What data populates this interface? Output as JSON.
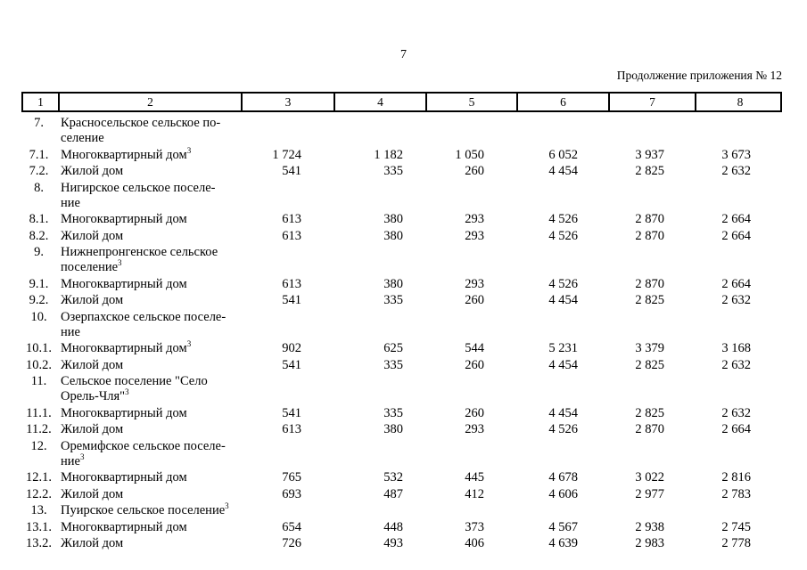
{
  "page_number": "7",
  "continuation_note": "Продолжение приложения № 12",
  "table": {
    "header_cols": [
      "1",
      "2",
      "3",
      "4",
      "5",
      "6",
      "7",
      "8"
    ],
    "rows": [
      {
        "num": "7.",
        "lines": [
          "Красносельское сельское по-",
          "селение"
        ],
        "sup": "",
        "values": []
      },
      {
        "num": "7.1.",
        "lines": [
          "Многоквартирный дом"
        ],
        "sup": "3",
        "values": [
          "1 724",
          "1 182",
          "1 050",
          "6 052",
          "3 937",
          "3 673"
        ]
      },
      {
        "num": "7.2.",
        "lines": [
          "Жилой дом"
        ],
        "sup": "",
        "values": [
          "541",
          "335",
          "260",
          "4 454",
          "2 825",
          "2 632"
        ]
      },
      {
        "num": "8.",
        "lines": [
          "Нигирское сельское поселе-",
          "ние"
        ],
        "sup": "",
        "values": []
      },
      {
        "num": "8.1.",
        "lines": [
          "Многоквартирный дом"
        ],
        "sup": "",
        "values": [
          "613",
          "380",
          "293",
          "4 526",
          "2 870",
          "2 664"
        ]
      },
      {
        "num": "8.2.",
        "lines": [
          "Жилой дом"
        ],
        "sup": "",
        "values": [
          "613",
          "380",
          "293",
          "4 526",
          "2 870",
          "2 664"
        ]
      },
      {
        "num": "9.",
        "lines": [
          "Нижнепронгенское сельское",
          "поселение"
        ],
        "sup": "3",
        "values": []
      },
      {
        "num": "9.1.",
        "lines": [
          "Многоквартирный дом"
        ],
        "sup": "",
        "values": [
          "613",
          "380",
          "293",
          "4 526",
          "2 870",
          "2 664"
        ]
      },
      {
        "num": "9.2.",
        "lines": [
          "Жилой дом"
        ],
        "sup": "",
        "values": [
          "541",
          "335",
          "260",
          "4 454",
          "2 825",
          "2 632"
        ]
      },
      {
        "num": "10.",
        "lines": [
          "Озерпахское сельское поселе-",
          "ние"
        ],
        "sup": "",
        "values": []
      },
      {
        "num": "10.1.",
        "lines": [
          "Многоквартирный дом"
        ],
        "sup": "3",
        "values": [
          "902",
          "625",
          "544",
          "5 231",
          "3 379",
          "3 168"
        ]
      },
      {
        "num": "10.2.",
        "lines": [
          "Жилой дом"
        ],
        "sup": "",
        "values": [
          "541",
          "335",
          "260",
          "4 454",
          "2 825",
          "2 632"
        ]
      },
      {
        "num": "11.",
        "lines": [
          "Сельское поселение \"Село",
          "Орель-Чля\""
        ],
        "sup": "3",
        "values": []
      },
      {
        "num": "11.1.",
        "lines": [
          "Многоквартирный дом"
        ],
        "sup": "",
        "values": [
          "541",
          "335",
          "260",
          "4 454",
          "2 825",
          "2 632"
        ]
      },
      {
        "num": "11.2.",
        "lines": [
          "Жилой дом"
        ],
        "sup": "",
        "values": [
          "613",
          "380",
          "293",
          "4 526",
          "2 870",
          "2 664"
        ]
      },
      {
        "num": "12.",
        "lines": [
          "Оремифское сельское поселе-",
          "ние"
        ],
        "sup": "3",
        "values": []
      },
      {
        "num": "12.1.",
        "lines": [
          "Многоквартирный дом"
        ],
        "sup": "",
        "values": [
          "765",
          "532",
          "445",
          "4 678",
          "3 022",
          "2 816"
        ]
      },
      {
        "num": "12.2.",
        "lines": [
          "Жилой дом"
        ],
        "sup": "",
        "values": [
          "693",
          "487",
          "412",
          "4 606",
          "2 977",
          "2 783"
        ]
      },
      {
        "num": "13.",
        "lines": [
          "Пуирское сельское поселение"
        ],
        "sup": "3",
        "values": []
      },
      {
        "num": "13.1.",
        "lines": [
          "Многоквартирный дом"
        ],
        "sup": "",
        "values": [
          "654",
          "448",
          "373",
          "4 567",
          "2 938",
          "2 745"
        ]
      },
      {
        "num": "13.2.",
        "lines": [
          "Жилой дом"
        ],
        "sup": "",
        "values": [
          "726",
          "493",
          "406",
          "4 639",
          "2 983",
          "2 778"
        ]
      }
    ]
  }
}
